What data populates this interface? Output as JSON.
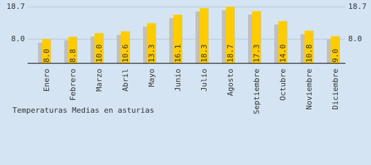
{
  "chart_data": {
    "type": "bar",
    "title": "Temperaturas Medias en asturias",
    "categories": [
      "Enero",
      "Febrero",
      "Marzo",
      "Abril",
      "Mayo",
      "Junio",
      "Julio",
      "Agosto",
      "Septiembre",
      "Octubre",
      "Noviembre",
      "Diciembre"
    ],
    "values": [
      8,
      8.8,
      10,
      10.6,
      13.3,
      16.1,
      18.3,
      18.7,
      17.3,
      14,
      10.8,
      9
    ],
    "value_labels": [
      "8.0",
      "8.8",
      "10.0",
      "10.6",
      "13.3",
      "16.1",
      "18.3",
      "18.7",
      "17.3",
      "14.0",
      "10.8",
      "9.0"
    ],
    "color": "#ffcc00",
    "shadow_color": "#c0c0c0",
    "ylim": [
      -0.65,
      18.7
    ],
    "yticks": [
      {
        "value": 8,
        "label": "8.0"
      },
      18.7
    ],
    "grid": true
  }
}
